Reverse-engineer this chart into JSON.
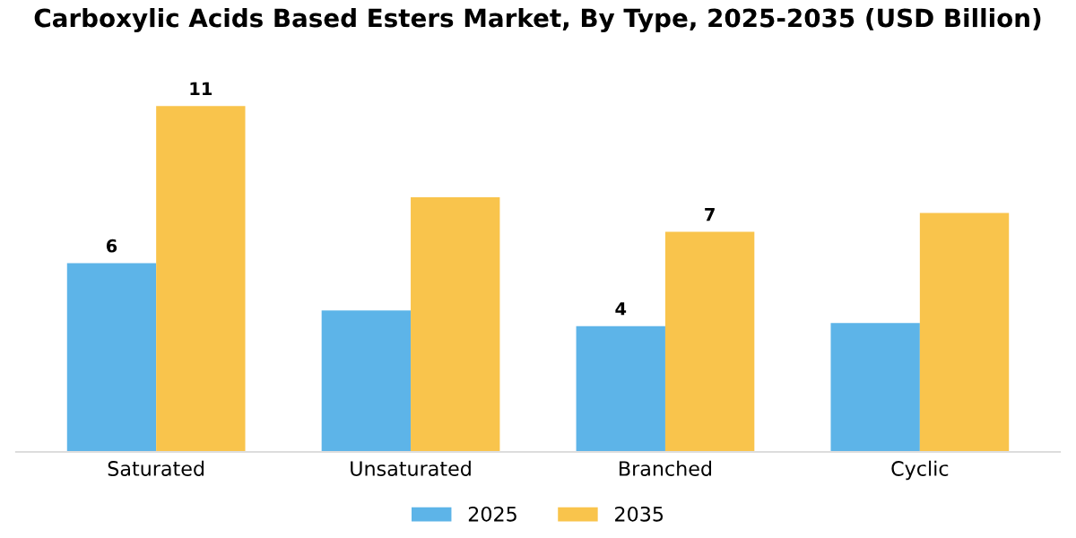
{
  "chart_data": {
    "type": "bar",
    "title": "Carboxylic Acids Based Esters Market, By Type, 2025-2035 (USD Billion)",
    "categories": [
      "Saturated",
      "Unsaturated",
      "Branched",
      "Cyclic"
    ],
    "series": [
      {
        "name": "2025",
        "color": "#5db4e8",
        "values": [
          6,
          4.5,
          4,
          4.1
        ],
        "value_labels": [
          "6",
          null,
          "4",
          null
        ]
      },
      {
        "name": "2035",
        "color": "#f9c44c",
        "values": [
          11,
          8.1,
          7,
          7.6
        ],
        "value_labels": [
          "11",
          null,
          "7",
          null
        ]
      }
    ],
    "legend": "bottom",
    "grid": false
  }
}
